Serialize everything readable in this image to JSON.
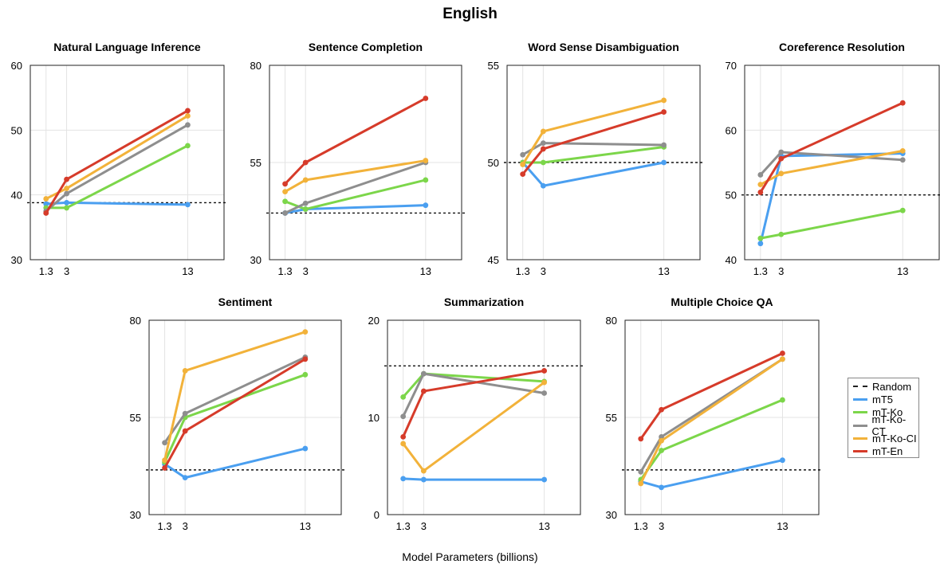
{
  "title": "English",
  "xlabel": "Model Parameters (billions)",
  "legend": [
    {
      "name": "Random",
      "color": "#222222",
      "dashed": true
    },
    {
      "name": "mT5",
      "color": "#4a9ff0"
    },
    {
      "name": "mT-Ko",
      "color": "#7cd64a"
    },
    {
      "name": "mT-Ko-CT",
      "color": "#8e8e8e"
    },
    {
      "name": "mT-Ko-CI",
      "color": "#f2b23a"
    },
    {
      "name": "mT-En",
      "color": "#d63b2a"
    }
  ],
  "chart_data": [
    {
      "type": "line",
      "title": "Natural Language Inference",
      "x": [
        1.3,
        3,
        13
      ],
      "xticks": [
        "1.3",
        "3",
        "13"
      ],
      "ylim": [
        30,
        60
      ],
      "yticks": [
        30,
        40,
        50,
        60
      ],
      "random": 38.8,
      "series": [
        {
          "name": "mT5",
          "values": [
            38.6,
            38.8,
            38.5
          ]
        },
        {
          "name": "mT-Ko",
          "values": [
            38.0,
            38.0,
            47.6
          ]
        },
        {
          "name": "mT-Ko-CT",
          "values": [
            37.5,
            40.2,
            50.8
          ]
        },
        {
          "name": "mT-Ko-CI",
          "values": [
            39.4,
            41.0,
            52.2
          ]
        },
        {
          "name": "mT-En",
          "values": [
            37.2,
            42.4,
            53.0
          ]
        }
      ]
    },
    {
      "type": "line",
      "title": "Sentence Completion",
      "x": [
        1.3,
        3,
        13
      ],
      "xticks": [
        "1.3",
        "3",
        "13"
      ],
      "ylim": [
        30,
        80
      ],
      "yticks": [
        30,
        55,
        80
      ],
      "random": 42.0,
      "series": [
        {
          "name": "mT5",
          "values": [
            42.0,
            43.0,
            44.0
          ]
        },
        {
          "name": "mT-Ko",
          "values": [
            45.0,
            43.0,
            50.5
          ]
        },
        {
          "name": "mT-Ko-CT",
          "values": [
            42.0,
            44.5,
            55.0
          ]
        },
        {
          "name": "mT-Ko-CI",
          "values": [
            47.5,
            50.5,
            55.5
          ]
        },
        {
          "name": "mT-En",
          "values": [
            49.5,
            55.0,
            71.5
          ]
        }
      ]
    },
    {
      "type": "line",
      "title": "Word Sense Disambiguation",
      "x": [
        1.3,
        3,
        13
      ],
      "xticks": [
        "1.3",
        "3",
        "13"
      ],
      "ylim": [
        45,
        55
      ],
      "yticks": [
        45,
        50,
        55
      ],
      "random": 50.0,
      "series": [
        {
          "name": "mT5",
          "values": [
            50.0,
            48.8,
            50.0
          ]
        },
        {
          "name": "mT-Ko",
          "values": [
            50.0,
            50.0,
            50.8
          ]
        },
        {
          "name": "mT-Ko-CT",
          "values": [
            50.4,
            51.0,
            50.9
          ]
        },
        {
          "name": "mT-Ko-CI",
          "values": [
            49.9,
            51.6,
            53.2
          ]
        },
        {
          "name": "mT-En",
          "values": [
            49.4,
            50.7,
            52.6
          ]
        }
      ]
    },
    {
      "type": "line",
      "title": "Coreference Resolution",
      "x": [
        1.3,
        3,
        13
      ],
      "xticks": [
        "1.3",
        "3",
        "13"
      ],
      "ylim": [
        40,
        70
      ],
      "yticks": [
        40,
        50,
        60,
        70
      ],
      "random": 50.0,
      "series": [
        {
          "name": "mT5",
          "values": [
            42.5,
            56.0,
            56.4
          ]
        },
        {
          "name": "mT-Ko",
          "values": [
            43.3,
            43.9,
            47.6
          ]
        },
        {
          "name": "mT-Ko-CT",
          "values": [
            53.1,
            56.6,
            55.4
          ]
        },
        {
          "name": "mT-Ko-CI",
          "values": [
            51.6,
            53.3,
            56.8
          ]
        },
        {
          "name": "mT-En",
          "values": [
            50.4,
            55.6,
            64.2
          ]
        }
      ]
    },
    {
      "type": "line",
      "title": "Sentiment",
      "x": [
        1.3,
        3,
        13
      ],
      "xticks": [
        "1.3",
        "3",
        "13"
      ],
      "ylim": [
        30,
        80
      ],
      "yticks": [
        30,
        55,
        80
      ],
      "random": 41.5,
      "series": [
        {
          "name": "mT5",
          "values": [
            43.0,
            39.5,
            47.0
          ]
        },
        {
          "name": "mT-Ko",
          "values": [
            43.5,
            55.0,
            66.0
          ]
        },
        {
          "name": "mT-Ko-CT",
          "values": [
            48.5,
            56.0,
            70.5
          ]
        },
        {
          "name": "mT-Ko-CI",
          "values": [
            44.0,
            67.0,
            77.0
          ]
        },
        {
          "name": "mT-En",
          "values": [
            42.0,
            51.5,
            70.0
          ]
        }
      ]
    },
    {
      "type": "line",
      "title": "Summarization",
      "x": [
        1.3,
        3,
        13
      ],
      "xticks": [
        "1.3",
        "3",
        "13"
      ],
      "ylim": [
        0,
        20
      ],
      "yticks": [
        0,
        10,
        20
      ],
      "random": 15.3,
      "series": [
        {
          "name": "mT5",
          "values": [
            3.7,
            3.6,
            3.6
          ]
        },
        {
          "name": "mT-Ko",
          "values": [
            12.1,
            14.5,
            13.7
          ]
        },
        {
          "name": "mT-Ko-CT",
          "values": [
            10.1,
            14.5,
            12.5
          ]
        },
        {
          "name": "mT-Ko-CI",
          "values": [
            7.3,
            4.5,
            13.6
          ]
        },
        {
          "name": "mT-En",
          "values": [
            8.0,
            12.7,
            14.8
          ]
        }
      ]
    },
    {
      "type": "line",
      "title": "Multiple Choice QA",
      "x": [
        1.3,
        3,
        13
      ],
      "xticks": [
        "1.3",
        "3",
        "13"
      ],
      "ylim": [
        30,
        80
      ],
      "yticks": [
        30,
        55,
        80
      ],
      "random": 41.5,
      "series": [
        {
          "name": "mT5",
          "values": [
            38.5,
            37.0,
            44.0
          ]
        },
        {
          "name": "mT-Ko",
          "values": [
            39.0,
            46.5,
            59.5
          ]
        },
        {
          "name": "mT-Ko-CT",
          "values": [
            41.0,
            50.0,
            70.0
          ]
        },
        {
          "name": "mT-Ko-CI",
          "values": [
            38.0,
            49.0,
            70.0
          ]
        },
        {
          "name": "mT-En",
          "values": [
            49.5,
            57.0,
            71.5
          ]
        }
      ]
    }
  ]
}
